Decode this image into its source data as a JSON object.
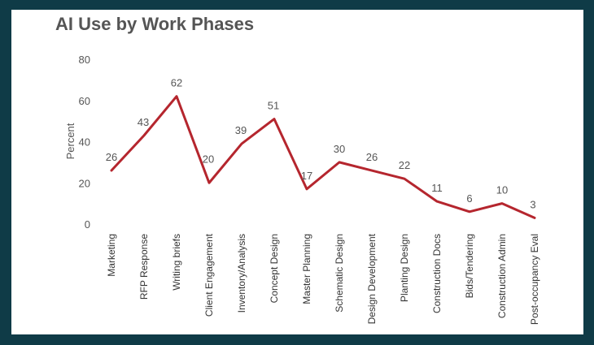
{
  "chart_data": {
    "type": "line",
    "title": "AI Use by Work Phases",
    "xlabel": "",
    "ylabel": "Percent",
    "ylim": [
      0,
      80
    ],
    "yticks": [
      0,
      20,
      40,
      60,
      80
    ],
    "grid": false,
    "categories": [
      "Marketing",
      "RFP Response",
      "Writing briefs",
      "Client Engagement",
      "Inventory/Analysis",
      "Concept Design",
      "Master Planning",
      "Schematic Design",
      "Design Development",
      "Planting Design",
      "Construction Docs",
      "Bids/Tendering",
      "Construction Admin",
      "Post-occupancy Eval"
    ],
    "series": [
      {
        "values": [
          26,
          43,
          62,
          20,
          39,
          51,
          17,
          30,
          26,
          22,
          11,
          6,
          10,
          3
        ],
        "color": "#b5262e"
      }
    ]
  }
}
